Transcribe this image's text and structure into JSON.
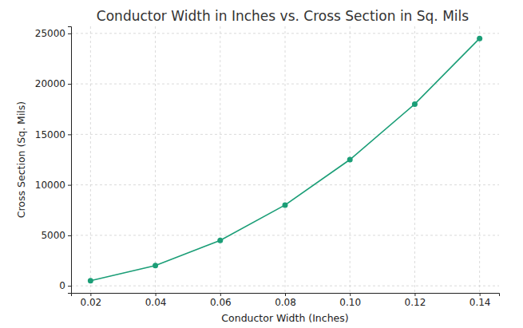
{
  "chart_data": {
    "type": "line",
    "title": "Conductor Width in Inches vs. Cross Section in Sq. Mils",
    "x_label": "Conductor Width (Inches)",
    "y_label": "Cross Section (Sq. Mils)",
    "x": [
      0.02,
      0.04,
      0.06,
      0.08,
      0.1,
      0.12,
      0.14
    ],
    "values": [
      500,
      2000,
      4500,
      8000,
      12500,
      18000,
      24500
    ],
    "color": "#1b9e77",
    "marker": "circle",
    "line_style": "solid",
    "xlim": [
      0.014,
      0.146
    ],
    "ylim": [
      -700,
      25700
    ],
    "xticks": [
      0.02,
      0.04,
      0.06,
      0.08,
      {
        "value": 0.1,
        "label": "0.10"
      },
      0.12,
      0.14
    ],
    "yticks": [
      0,
      5000,
      10000,
      15000,
      20000,
      25000
    ],
    "grid": true
  }
}
